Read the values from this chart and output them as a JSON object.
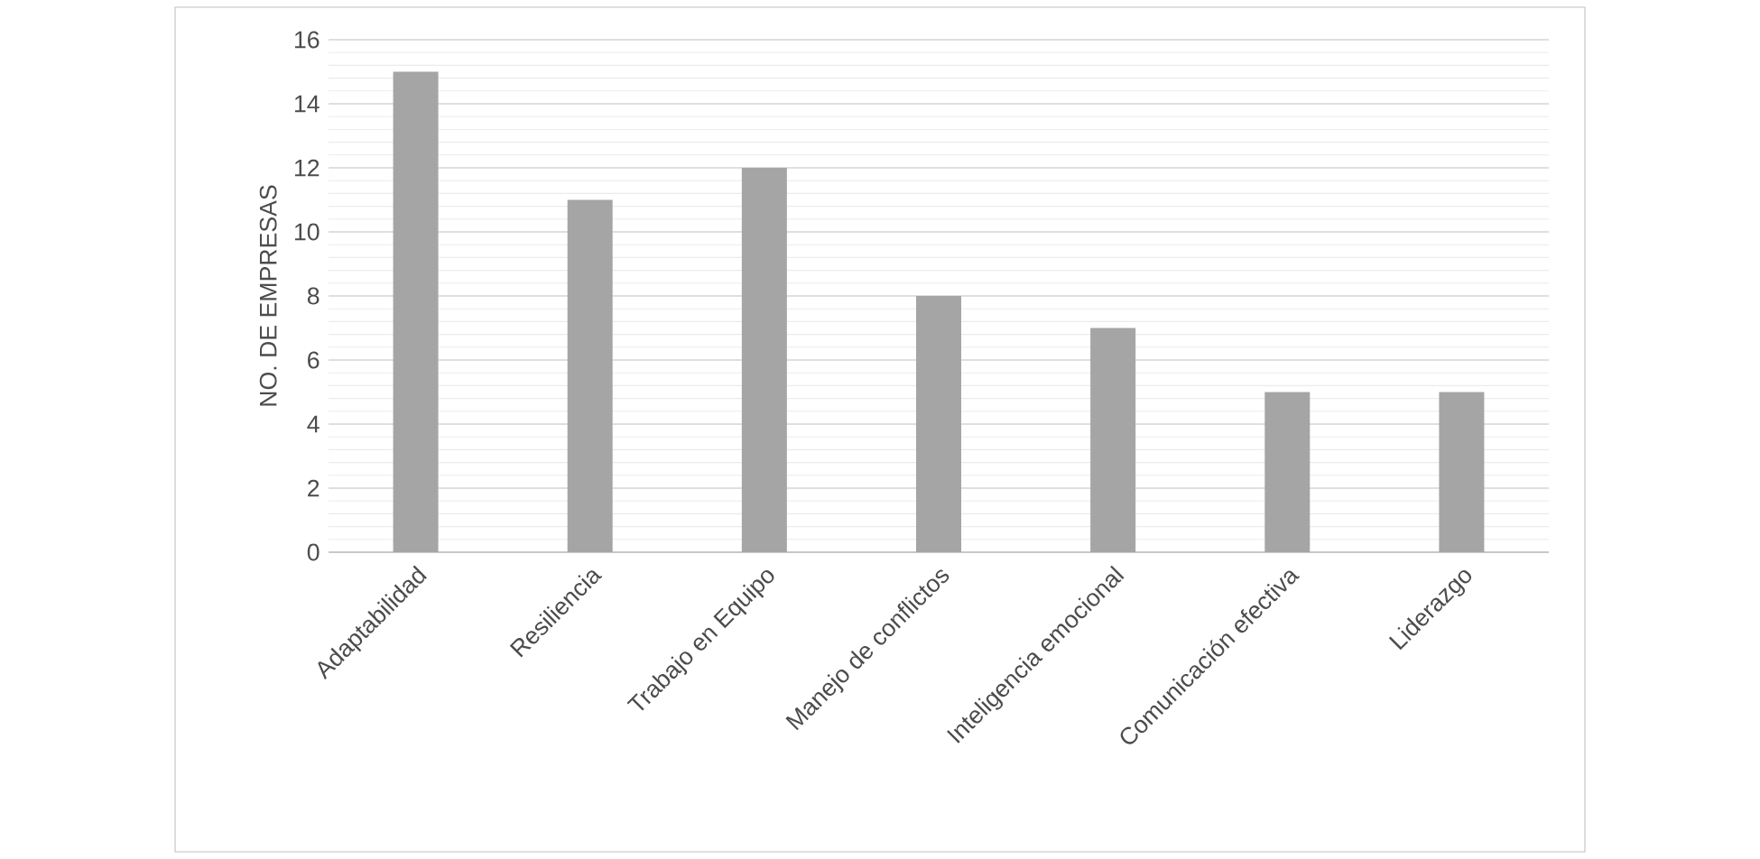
{
  "chart_data": {
    "type": "bar",
    "ylabel": "NO. DE EMPRESAS",
    "categories": [
      "Adaptabilidad",
      "Resiliencia",
      "Trabajo en Equipo",
      "Manejo de conflictos",
      "Inteligencia emocional",
      "Comunicación efectiva",
      "Liderazgo"
    ],
    "values": [
      15,
      11,
      12,
      8,
      7,
      5,
      5
    ],
    "color": "#a5a5a5",
    "ylim": [
      0,
      16
    ],
    "yticks": [
      0,
      2,
      4,
      6,
      8,
      10,
      12,
      14,
      16
    ],
    "grid": "y"
  }
}
